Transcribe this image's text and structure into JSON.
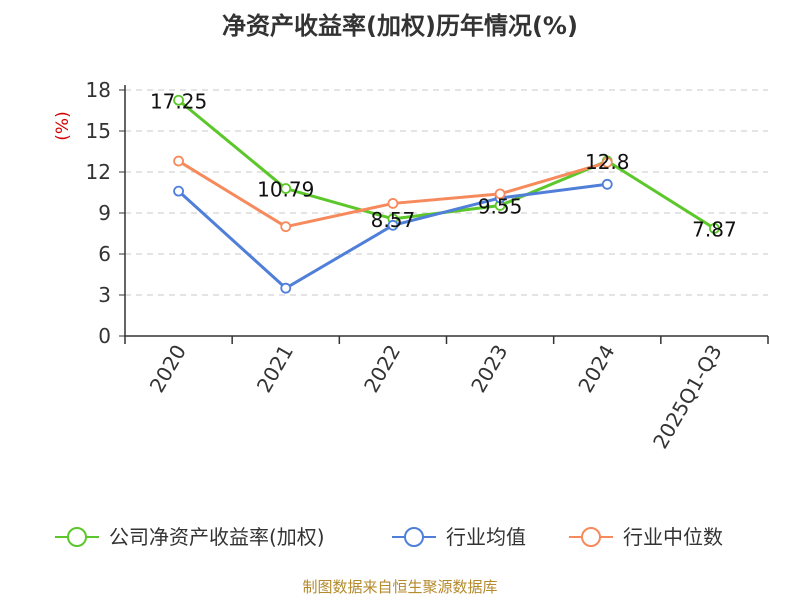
{
  "chart_data": {
    "type": "line",
    "title": "净资产收益率(加权)历年情况(%)",
    "ylabel": "(%)",
    "xlabel": "",
    "categories": [
      "2020",
      "2021",
      "2022",
      "2023",
      "2024",
      "2025Q1-Q3"
    ],
    "ylim": [
      0,
      18
    ],
    "yticks": [
      0,
      3,
      6,
      9,
      12,
      15,
      18
    ],
    "grid": true,
    "legend_position": "bottom",
    "series": [
      {
        "name": "公司净资产收益率(加权)",
        "color": "#5cc72a",
        "values": [
          17.25,
          10.79,
          8.57,
          9.55,
          12.8,
          7.87
        ],
        "labels": [
          "17.25",
          "10.79",
          "8.57",
          "9.55",
          "12.8",
          "7.87"
        ]
      },
      {
        "name": "行业均值",
        "color": "#4f7fd9",
        "values": [
          10.6,
          3.5,
          8.1,
          10.1,
          11.1,
          null
        ]
      },
      {
        "name": "行业中位数",
        "color": "#f68a5c",
        "values": [
          12.8,
          8.0,
          9.7,
          10.4,
          12.7,
          null
        ]
      }
    ]
  },
  "source": "制图数据来自恒生聚源数据库"
}
